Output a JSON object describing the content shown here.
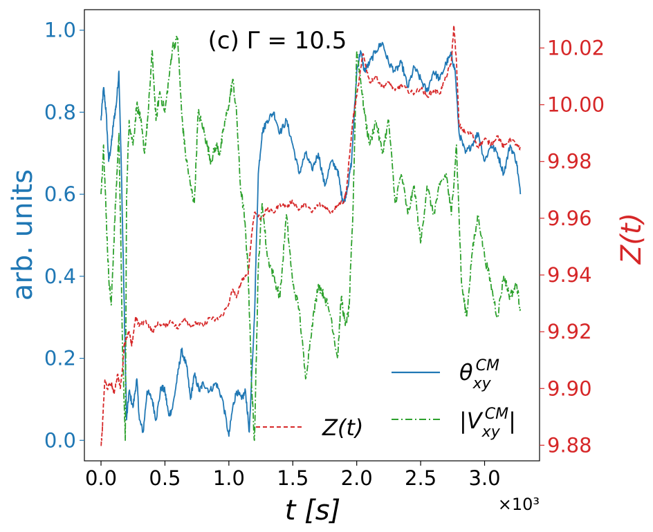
{
  "chart_data": {
    "type": "line",
    "title": "(c)  Γ = 10.5",
    "xlabel": "t [s]",
    "x_multiplier": "×10³",
    "ylabel_left": "arb. units",
    "ylabel_right": "Z(t)",
    "xlim": [
      -0.13,
      3.43
    ],
    "ylim_left": [
      -0.05,
      1.05
    ],
    "ylim_right": [
      9.8745,
      10.0335
    ],
    "x_ticks": [
      "0.0",
      "0.5",
      "1.0",
      "1.5",
      "2.0",
      "2.5",
      "3.0"
    ],
    "y_left_ticks": [
      "0.0",
      "0.2",
      "0.4",
      "0.6",
      "0.8",
      "1.0"
    ],
    "y_right_ticks": [
      "9.88",
      "9.90",
      "9.92",
      "9.94",
      "9.96",
      "9.98",
      "10.00",
      "10.02"
    ],
    "colors": {
      "theta": "#1f77b4",
      "v": "#2ca02c",
      "z": "#d62728",
      "left_axis": "#1f77b4",
      "right_axis": "#d62728"
    },
    "series": [
      {
        "name": "θ_xy^CM",
        "legend_label": "θxyCM",
        "axis": "left",
        "style": "solid",
        "x": [
          0.0,
          0.02,
          0.04,
          0.06,
          0.08,
          0.1,
          0.12,
          0.14,
          0.16,
          0.18,
          0.2,
          0.22,
          0.25,
          0.28,
          0.3,
          0.33,
          0.36,
          0.4,
          0.43,
          0.47,
          0.5,
          0.53,
          0.56,
          0.6,
          0.63,
          0.67,
          0.7,
          0.73,
          0.77,
          0.8,
          0.85,
          0.9,
          0.95,
          1.0,
          1.03,
          1.06,
          1.1,
          1.13,
          1.16,
          1.2,
          1.23,
          1.26,
          1.3,
          1.35,
          1.4,
          1.45,
          1.5,
          1.55,
          1.6,
          1.65,
          1.7,
          1.75,
          1.8,
          1.85,
          1.88,
          1.9,
          1.93,
          1.96,
          2.0,
          2.03,
          2.06,
          2.1,
          2.15,
          2.2,
          2.25,
          2.3,
          2.35,
          2.4,
          2.45,
          2.5,
          2.55,
          2.6,
          2.65,
          2.7,
          2.74,
          2.77,
          2.8,
          2.85,
          2.9,
          2.95,
          3.0,
          3.05,
          3.1,
          3.15,
          3.2,
          3.25,
          3.28
        ],
        "y": [
          0.78,
          0.86,
          0.8,
          0.68,
          0.72,
          0.78,
          0.82,
          0.9,
          0.65,
          0.35,
          0.05,
          0.12,
          0.08,
          0.15,
          0.05,
          0.02,
          0.12,
          0.1,
          0.05,
          0.13,
          0.12,
          0.06,
          0.08,
          0.16,
          0.22,
          0.18,
          0.1,
          0.16,
          0.12,
          0.14,
          0.12,
          0.14,
          0.1,
          0.01,
          0.08,
          0.12,
          0.1,
          0.12,
          0.02,
          0.3,
          0.65,
          0.75,
          0.78,
          0.8,
          0.75,
          0.78,
          0.72,
          0.65,
          0.7,
          0.66,
          0.7,
          0.62,
          0.68,
          0.66,
          0.6,
          0.58,
          0.62,
          0.68,
          0.9,
          0.95,
          0.9,
          0.92,
          0.95,
          0.97,
          0.92,
          0.9,
          0.92,
          0.86,
          0.91,
          0.88,
          0.85,
          0.9,
          0.88,
          0.92,
          0.94,
          0.9,
          0.75,
          0.7,
          0.72,
          0.75,
          0.68,
          0.72,
          0.7,
          0.65,
          0.72,
          0.68,
          0.6
        ]
      },
      {
        "name": "|V_xy^CM|",
        "legend_label": "|VxyCM|",
        "axis": "left",
        "style": "dashdot",
        "x": [
          0.0,
          0.02,
          0.04,
          0.06,
          0.08,
          0.1,
          0.12,
          0.14,
          0.17,
          0.19,
          0.2,
          0.22,
          0.25,
          0.28,
          0.31,
          0.34,
          0.37,
          0.4,
          0.43,
          0.46,
          0.5,
          0.53,
          0.56,
          0.6,
          0.63,
          0.66,
          0.7,
          0.73,
          0.76,
          0.8,
          0.83,
          0.86,
          0.9,
          0.93,
          0.96,
          1.0,
          1.03,
          1.06,
          1.09,
          1.12,
          1.15,
          1.18,
          1.2,
          1.23,
          1.26,
          1.3,
          1.35,
          1.4,
          1.45,
          1.5,
          1.55,
          1.6,
          1.65,
          1.7,
          1.75,
          1.8,
          1.85,
          1.88,
          1.91,
          1.94,
          1.97,
          2.0,
          2.03,
          2.06,
          2.1,
          2.15,
          2.2,
          2.25,
          2.3,
          2.35,
          2.4,
          2.45,
          2.5,
          2.55,
          2.6,
          2.65,
          2.7,
          2.74,
          2.78,
          2.82,
          2.86,
          2.9,
          2.95,
          3.0,
          3.05,
          3.1,
          3.15,
          3.2,
          3.25,
          3.28
        ],
        "y": [
          0.6,
          0.72,
          0.55,
          0.4,
          0.33,
          0.48,
          0.62,
          0.75,
          0.2,
          0.0,
          0.6,
          0.78,
          0.72,
          0.82,
          0.78,
          0.7,
          0.8,
          0.95,
          0.78,
          0.85,
          0.8,
          0.88,
          0.96,
          0.98,
          0.8,
          0.7,
          0.62,
          0.58,
          0.8,
          0.76,
          0.72,
          0.68,
          0.72,
          0.7,
          0.76,
          0.82,
          0.88,
          0.8,
          0.62,
          0.55,
          0.42,
          0.12,
          0.0,
          0.42,
          0.58,
          0.45,
          0.4,
          0.35,
          0.55,
          0.38,
          0.32,
          0.15,
          0.28,
          0.38,
          0.35,
          0.3,
          0.2,
          0.35,
          0.28,
          0.32,
          0.55,
          0.95,
          0.88,
          0.8,
          0.72,
          0.78,
          0.7,
          0.78,
          0.58,
          0.65,
          0.55,
          0.62,
          0.48,
          0.62,
          0.55,
          0.62,
          0.65,
          0.55,
          0.72,
          0.38,
          0.3,
          0.45,
          0.55,
          0.45,
          0.38,
          0.3,
          0.4,
          0.35,
          0.38,
          0.32
        ]
      },
      {
        "name": "Z(t)",
        "legend_label": "Z(t)",
        "axis": "right",
        "style": "dashed",
        "x": [
          0.0,
          0.01,
          0.02,
          0.03,
          0.05,
          0.08,
          0.1,
          0.13,
          0.15,
          0.17,
          0.18,
          0.2,
          0.22,
          0.24,
          0.27,
          0.3,
          0.35,
          0.4,
          0.45,
          0.5,
          0.55,
          0.6,
          0.65,
          0.7,
          0.75,
          0.8,
          0.85,
          0.9,
          0.95,
          1.0,
          1.03,
          1.06,
          1.1,
          1.15,
          1.18,
          1.2,
          1.25,
          1.3,
          1.35,
          1.4,
          1.45,
          1.5,
          1.55,
          1.6,
          1.65,
          1.7,
          1.75,
          1.8,
          1.85,
          1.9,
          1.92,
          1.95,
          1.97,
          2.0,
          2.05,
          2.1,
          2.15,
          2.2,
          2.25,
          2.3,
          2.35,
          2.4,
          2.45,
          2.5,
          2.55,
          2.6,
          2.65,
          2.7,
          2.74,
          2.76,
          2.78,
          2.8,
          2.85,
          2.9,
          2.95,
          3.0,
          3.05,
          3.1,
          3.15,
          3.2,
          3.25,
          3.28
        ],
        "y": [
          9.88,
          9.885,
          9.895,
          9.903,
          9.9,
          9.902,
          9.898,
          9.905,
          9.9,
          9.908,
          9.915,
          9.918,
          9.92,
          9.915,
          9.925,
          9.922,
          9.924,
          9.92,
          9.923,
          9.922,
          9.924,
          9.921,
          9.925,
          9.922,
          9.923,
          9.922,
          9.925,
          9.924,
          9.926,
          9.93,
          9.935,
          9.932,
          9.938,
          9.94,
          9.955,
          9.962,
          9.96,
          9.963,
          9.962,
          9.965,
          9.964,
          9.966,
          9.963,
          9.965,
          9.962,
          9.965,
          9.964,
          9.962,
          9.965,
          9.966,
          9.97,
          9.985,
          9.995,
          10.003,
          10.018,
          10.008,
          10.01,
          10.006,
          10.008,
          10.005,
          10.007,
          10.005,
          10.004,
          10.006,
          10.003,
          10.005,
          10.004,
          10.01,
          10.015,
          10.028,
          10.015,
          9.993,
          9.99,
          9.99,
          9.985,
          9.988,
          9.986,
          9.989,
          9.985,
          9.988,
          9.986,
          9.984
        ]
      }
    ]
  }
}
